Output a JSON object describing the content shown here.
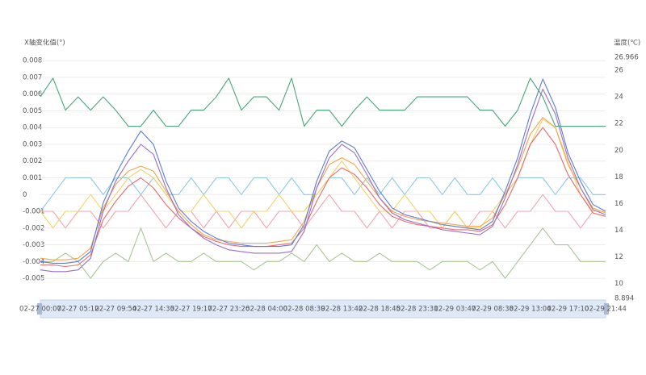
{
  "chart_data": {
    "type": "line",
    "ylabel": "X轴变化值(°)",
    "y2label": "温度(℃)",
    "categories": [
      "02-27 00:07",
      null,
      null,
      "02-27 05:12",
      null,
      null,
      "02-27 09:54",
      null,
      null,
      "02-27 14:33",
      null,
      null,
      "02-27 19:17",
      null,
      null,
      "02-27 23:26",
      null,
      null,
      "02-28 04:00",
      null,
      null,
      "02-28 08:39",
      null,
      null,
      "02-28 13:42",
      null,
      null,
      "02-28 18:45",
      null,
      null,
      "02-28 23:31",
      null,
      null,
      "02-29 03:47",
      null,
      null,
      "02-29 08:38",
      null,
      null,
      "02-29 13:04",
      null,
      null,
      "02-29 17:10",
      null,
      null,
      "02-29 21:44"
    ],
    "ylim": [
      -0.0062,
      0.0082
    ],
    "yticks": [
      0.008,
      0.007,
      0.006,
      0.005,
      0.004,
      0.003,
      0.002,
      0.001,
      0,
      -0.001,
      -0.002,
      -0.003,
      -0.004,
      -0.005
    ],
    "y2lim": [
      8.894,
      26.966
    ],
    "y2ticks": [
      26.966,
      26,
      24,
      22,
      20,
      18,
      16,
      14,
      12,
      10,
      8.894
    ],
    "grid": true,
    "series": [
      {
        "color": "#a9c48f",
        "values": [
          -0.004,
          -0.004,
          -0.0035,
          -0.004,
          -0.005,
          -0.004,
          -0.0035,
          -0.004,
          -0.002,
          -0.004,
          -0.0035,
          -0.004,
          -0.004,
          -0.0035,
          -0.004,
          -0.004,
          -0.004,
          -0.0045,
          -0.004,
          -0.004,
          -0.0035,
          -0.004,
          -0.003,
          -0.004,
          -0.0035,
          -0.004,
          -0.004,
          -0.0035,
          -0.004,
          -0.004,
          -0.004,
          -0.0045,
          -0.004,
          -0.004,
          -0.004,
          -0.0045,
          -0.004,
          -0.005,
          -0.004,
          -0.003,
          -0.002,
          -0.003,
          -0.003,
          -0.004,
          -0.004,
          -0.004
        ]
      },
      {
        "color": "#8ecae6",
        "values": [
          -0.001,
          0,
          0.001,
          0.001,
          0.001,
          0,
          0.001,
          0.001,
          0,
          0.001,
          0,
          0,
          0.001,
          0,
          0.001,
          0.001,
          0,
          0.001,
          0.001,
          0,
          0.001,
          0,
          0,
          0.001,
          0.001,
          0,
          0.001,
          0,
          0.001,
          0,
          0.001,
          0.001,
          0,
          0.001,
          0,
          0,
          0.001,
          0,
          0.001,
          0.001,
          0.001,
          0,
          0.001,
          0.001,
          0,
          0
        ]
      },
      {
        "color": "#f4a3b4",
        "values": [
          -0.001,
          -0.001,
          -0.002,
          -0.001,
          -0.001,
          -0.002,
          -0.001,
          -0.001,
          0,
          -0.001,
          -0.002,
          -0.001,
          -0.001,
          -0.002,
          -0.001,
          -0.002,
          -0.001,
          -0.001,
          -0.002,
          -0.001,
          -0.001,
          -0.002,
          -0.001,
          0,
          -0.001,
          -0.001,
          -0.002,
          -0.001,
          -0.002,
          -0.001,
          -0.001,
          -0.002,
          -0.002,
          -0.001,
          -0.002,
          -0.001,
          -0.001,
          -0.002,
          -0.001,
          -0.001,
          0,
          -0.001,
          -0.001,
          -0.002,
          -0.001,
          -0.001
        ]
      },
      {
        "color": "#f3d36a",
        "values": [
          -0.001,
          -0.002,
          -0.001,
          -0.001,
          0,
          -0.001,
          0,
          0.001,
          0.0015,
          0.001,
          0,
          -0.001,
          -0.001,
          0,
          -0.001,
          -0.001,
          -0.002,
          -0.001,
          -0.001,
          0,
          -0.001,
          -0.001,
          0,
          0.001,
          0.002,
          0.001,
          0,
          -0.001,
          -0.001,
          0,
          -0.001,
          -0.001,
          -0.002,
          -0.001,
          -0.002,
          -0.002,
          -0.001,
          0,
          0.001,
          0.003,
          0.0045,
          0.004,
          0.002,
          0,
          -0.001,
          -0.001
        ]
      },
      {
        "color": "#e86a6a",
        "values": [
          -0.0042,
          -0.0042,
          -0.0043,
          -0.0042,
          -0.0036,
          -0.0015,
          -0.0004,
          0.0005,
          0.001,
          0.0004,
          -0.0006,
          -0.0014,
          -0.002,
          -0.0025,
          -0.0028,
          -0.003,
          -0.0031,
          -0.0031,
          -0.0031,
          -0.003,
          -0.0029,
          -0.002,
          -0.0004,
          0.001,
          0.0016,
          0.0012,
          0.0004,
          -0.0006,
          -0.0013,
          -0.0016,
          -0.0018,
          -0.0019,
          -0.002,
          -0.0021,
          -0.0021,
          -0.0022,
          -0.0018,
          -0.0006,
          0.001,
          0.003,
          0.004,
          0.003,
          0.0012,
          0,
          -0.0011,
          -0.0013
        ]
      },
      {
        "color": "#f5a54a",
        "values": [
          -0.0038,
          -0.0039,
          -0.0039,
          -0.0038,
          -0.0032,
          -0.0008,
          0.0006,
          0.0014,
          0.0017,
          0.0014,
          0.0002,
          -0.001,
          -0.0018,
          -0.0024,
          -0.0027,
          -0.0028,
          -0.0029,
          -0.0029,
          -0.0029,
          -0.0028,
          -0.0027,
          -0.0016,
          0.0004,
          0.0018,
          0.0022,
          0.0018,
          0.0008,
          -0.0002,
          -0.001,
          -0.0013,
          -0.0015,
          -0.0016,
          -0.0017,
          -0.0018,
          -0.0019,
          -0.0019,
          -0.0014,
          0,
          0.0016,
          0.0036,
          0.0046,
          0.004,
          0.0018,
          0.0004,
          -0.0008,
          -0.0011
        ]
      },
      {
        "color": "#9a6fc8",
        "values": [
          -0.0045,
          -0.0046,
          -0.0046,
          -0.0045,
          -0.0038,
          -0.001,
          0.0008,
          0.002,
          0.003,
          0.0024,
          0.0004,
          -0.0012,
          -0.002,
          -0.0026,
          -0.003,
          -0.0033,
          -0.0034,
          -0.0035,
          -0.0035,
          -0.0035,
          -0.0034,
          -0.0022,
          0.0004,
          0.0022,
          0.003,
          0.0025,
          0.0012,
          -0.0002,
          -0.0011,
          -0.0015,
          -0.0017,
          -0.0019,
          -0.0021,
          -0.0022,
          -0.0023,
          -0.0024,
          -0.0019,
          -0.0002,
          0.0018,
          0.0042,
          0.0063,
          0.0048,
          0.0022,
          0.0004,
          -0.0009,
          -0.0012
        ]
      },
      {
        "color": "#5b7bd5",
        "values": [
          -0.004,
          -0.0041,
          -0.0041,
          -0.004,
          -0.0034,
          -0.0005,
          0.0012,
          0.0026,
          0.0038,
          0.003,
          0.0008,
          -0.0008,
          -0.0016,
          -0.0022,
          -0.0026,
          -0.0029,
          -0.003,
          -0.0031,
          -0.0031,
          -0.0031,
          -0.003,
          -0.0018,
          0.0008,
          0.0026,
          0.0032,
          0.0028,
          0.0015,
          0.0002,
          -0.0008,
          -0.0012,
          -0.0014,
          -0.0016,
          -0.0018,
          -0.0019,
          -0.002,
          -0.0021,
          -0.0016,
          0.0002,
          0.0022,
          0.0048,
          0.0069,
          0.0052,
          0.0025,
          0.0008,
          -0.0006,
          -0.001
        ]
      },
      {
        "color": "#4aa57a",
        "axis": "y2",
        "values": [
          24,
          25.4,
          23,
          24,
          23,
          24,
          23,
          21.8,
          21.8,
          23,
          21.8,
          21.8,
          23,
          23,
          24,
          25.4,
          23,
          24,
          24,
          23,
          25.4,
          21.8,
          23,
          23,
          21.8,
          23,
          24,
          23,
          23,
          23,
          24,
          24,
          24,
          24,
          24,
          23,
          23,
          21.8,
          23,
          25.4,
          24,
          21.8,
          21.8,
          21.8,
          21.8,
          21.8
        ]
      }
    ]
  }
}
